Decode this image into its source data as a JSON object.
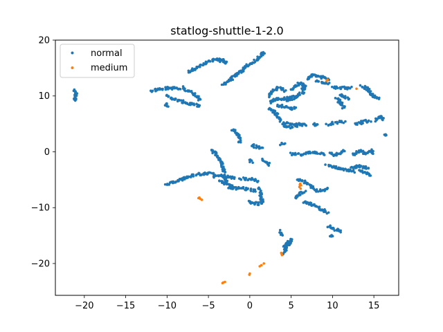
{
  "chart_data": {
    "type": "scatter",
    "title": "statlog-shuttle-1-2.0",
    "xlabel": "",
    "ylabel": "",
    "xlim": [
      -23.5,
      18.0
    ],
    "ylim": [
      -25.7,
      20.0
    ],
    "xticks": [
      -20,
      -15,
      -10,
      -5,
      0,
      5,
      10,
      15
    ],
    "yticks": [
      -20,
      -10,
      0,
      10,
      20
    ],
    "x_tick_labels": [
      "−20",
      "−15",
      "−10",
      "−5",
      "0",
      "5",
      "10",
      "15"
    ],
    "y_tick_labels": [
      "−20",
      "−10",
      "0",
      "10",
      "20"
    ],
    "legend_position": "upper-left",
    "series": [
      {
        "name": "normal",
        "color": "#1f77b4",
        "segments": [
          [
            [
              -21.3,
              11.0
            ],
            [
              -21.0,
              10.4
            ],
            [
              -21.2,
              9.2
            ]
          ],
          [
            [
              -7.5,
              14.3
            ],
            [
              -6.5,
              15.0
            ],
            [
              -5.5,
              15.7
            ],
            [
              -4.5,
              16.4
            ],
            [
              -3.5,
              16.6
            ],
            [
              -2.8,
              16.0
            ],
            [
              -3.8,
              16.3
            ]
          ],
          [
            [
              -3.3,
              12.0
            ],
            [
              -2.5,
              12.8
            ],
            [
              -1.6,
              13.8
            ],
            [
              -0.9,
              14.5
            ],
            [
              -0.5,
              15.2
            ]
          ],
          [
            [
              -0.8,
              15.0
            ],
            [
              0.0,
              15.6
            ],
            [
              0.8,
              16.4
            ],
            [
              1.3,
              17.3
            ],
            [
              1.8,
              17.8
            ]
          ],
          [
            [
              -12.0,
              10.9
            ],
            [
              -11.0,
              11.2
            ],
            [
              -10.0,
              11.4
            ],
            [
              -9.0,
              11.4
            ],
            [
              -8.5,
              11.2
            ]
          ],
          [
            [
              -8.2,
              11.5
            ],
            [
              -7.5,
              11.0
            ],
            [
              -6.8,
              10.4
            ],
            [
              -6.2,
              9.8
            ],
            [
              -6.0,
              9.2
            ]
          ],
          [
            [
              -10.0,
              10.0
            ],
            [
              -9.0,
              9.3
            ],
            [
              -8.0,
              8.9
            ],
            [
              -7.0,
              8.5
            ],
            [
              -6.1,
              8.2
            ]
          ],
          [
            [
              -10.2,
              8.6
            ],
            [
              -10.0,
              8.0
            ]
          ],
          [
            [
              -2.2,
              4.0
            ],
            [
              -1.6,
              3.4
            ],
            [
              -1.3,
              2.6
            ],
            [
              -1.2,
              1.8
            ]
          ],
          [
            [
              -4.7,
              0.4
            ],
            [
              -4.1,
              -0.4
            ],
            [
              -3.6,
              -1.3
            ],
            [
              -3.3,
              -2.3
            ],
            [
              -3.1,
              -3.4
            ],
            [
              -3.0,
              -4.5
            ],
            [
              -2.8,
              -5.4
            ]
          ],
          [
            [
              -10.2,
              -5.9
            ],
            [
              -9.2,
              -5.4
            ],
            [
              -8.2,
              -4.9
            ],
            [
              -7.2,
              -4.4
            ],
            [
              -6.2,
              -4.0
            ],
            [
              -5.2,
              -3.9
            ],
            [
              -4.4,
              -3.9
            ]
          ],
          [
            [
              -4.4,
              -4.4
            ],
            [
              -3.4,
              -4.3
            ],
            [
              -2.6,
              -4.5
            ],
            [
              -1.8,
              -4.7
            ]
          ],
          [
            [
              -3.7,
              -5.2
            ],
            [
              -3.0,
              -5.6
            ],
            [
              -2.4,
              -6.0
            ],
            [
              -1.9,
              -6.3
            ]
          ],
          [
            [
              -1.1,
              -4.8
            ],
            [
              0.0,
              -4.9
            ],
            [
              0.7,
              -5.0
            ],
            [
              0.9,
              -5.4
            ]
          ],
          [
            [
              -2.6,
              -6.3
            ],
            [
              -2.0,
              -6.6
            ],
            [
              -1.2,
              -6.4
            ],
            [
              -0.2,
              -6.7
            ],
            [
              0.8,
              -7.0
            ]
          ],
          [
            [
              1.1,
              -6.4
            ],
            [
              1.3,
              -7.2
            ],
            [
              1.3,
              -8.3
            ],
            [
              1.6,
              -9.0
            ],
            [
              1.0,
              -9.3
            ],
            [
              0.3,
              -9.1
            ],
            [
              0.0,
              -8.8
            ]
          ],
          [
            [
              0.2,
              1.2
            ],
            [
              0.8,
              0.9
            ],
            [
              1.4,
              0.6
            ]
          ],
          [
            [
              1.5,
              -1.4
            ],
            [
              2.0,
              -1.8
            ],
            [
              2.4,
              -2.3
            ]
          ],
          [
            [
              0.0,
              -1.4
            ],
            [
              0.2,
              -1.8
            ]
          ],
          [
            [
              3.7,
              -14.2
            ],
            [
              3.8,
              -14.9
            ]
          ],
          [
            [
              4.0,
              -16.8
            ],
            [
              4.5,
              -16.3
            ],
            [
              5.0,
              -15.8
            ],
            [
              4.4,
              -17.2
            ],
            [
              4.0,
              -18.3
            ]
          ],
          [
            [
              2.3,
              9.9
            ],
            [
              2.7,
              10.8
            ],
            [
              3.3,
              11.5
            ],
            [
              3.8,
              11.4
            ],
            [
              4.3,
              11.0
            ]
          ],
          [
            [
              2.4,
              8.8
            ],
            [
              3.0,
              9.3
            ],
            [
              3.6,
              9.5
            ],
            [
              4.6,
              9.6
            ],
            [
              5.2,
              9.8
            ]
          ],
          [
            [
              2.3,
              7.8
            ],
            [
              2.8,
              7.3
            ],
            [
              3.2,
              6.7
            ],
            [
              3.5,
              6.1
            ],
            [
              3.8,
              5.5
            ]
          ],
          [
            [
              3.4,
              8.4
            ],
            [
              4.3,
              8.0
            ],
            [
              5.0,
              7.7
            ],
            [
              5.5,
              7.9
            ]
          ],
          [
            [
              4.4,
              9.2
            ],
            [
              5.4,
              9.7
            ],
            [
              6.0,
              10.1
            ]
          ],
          [
            [
              3.9,
              5.2
            ],
            [
              5.0,
              5.0
            ],
            [
              6.0,
              4.9
            ],
            [
              6.8,
              4.8
            ]
          ],
          [
            [
              4.1,
              4.4
            ],
            [
              5.6,
              4.5
            ]
          ],
          [
            [
              5.0,
              11.1
            ],
            [
              5.6,
              11.7
            ],
            [
              6.2,
              12.5
            ]
          ],
          [
            [
              6.4,
              12.2
            ],
            [
              6.7,
              11.6
            ],
            [
              6.3,
              11.1
            ]
          ],
          [
            [
              7.0,
              13.0
            ],
            [
              7.6,
              13.7
            ],
            [
              8.2,
              13.6
            ],
            [
              9.0,
              13.2
            ],
            [
              9.5,
              13.0
            ]
          ],
          [
            [
              8.0,
              12.6
            ],
            [
              8.8,
              12.5
            ],
            [
              9.6,
              12.3
            ]
          ],
          [
            [
              6.1,
              10.7
            ],
            [
              6.6,
              10.6
            ]
          ],
          [
            [
              10.0,
              11.5
            ],
            [
              10.8,
              11.5
            ],
            [
              11.6,
              11.4
            ],
            [
              12.3,
              11.4
            ]
          ],
          [
            [
              11.0,
              10.3
            ],
            [
              11.5,
              9.7
            ],
            [
              12.0,
              9.3
            ]
          ],
          [
            [
              10.5,
              9.6
            ],
            [
              11.1,
              8.6
            ],
            [
              11.4,
              7.9
            ]
          ],
          [
            [
              13.5,
              11.8
            ],
            [
              14.2,
              11.3
            ],
            [
              14.5,
              10.6
            ],
            [
              15.0,
              9.8
            ],
            [
              15.6,
              9.5
            ]
          ],
          [
            [
              14.6,
              10.3
            ],
            [
              15.3,
              9.8
            ]
          ],
          [
            [
              7.6,
              4.8
            ],
            [
              8.2,
              5.1
            ]
          ],
          [
            [
              9.3,
              4.9
            ],
            [
              10.0,
              5.1
            ],
            [
              10.8,
              5.3
            ],
            [
              11.4,
              5.4
            ]
          ],
          [
            [
              12.8,
              4.9
            ],
            [
              13.5,
              5.3
            ],
            [
              14.0,
              5.5
            ],
            [
              14.5,
              5.4
            ]
          ],
          [
            [
              15.1,
              5.6
            ],
            [
              15.5,
              6.1
            ],
            [
              16.0,
              6.2
            ],
            [
              16.2,
              5.7
            ]
          ],
          [
            [
              16.4,
              3.0
            ]
          ],
          [
            [
              5.0,
              -0.4
            ],
            [
              6.0,
              -0.5
            ],
            [
              7.0,
              -0.2
            ],
            [
              8.0,
              -0.1
            ],
            [
              9.0,
              -0.4
            ]
          ],
          [
            [
              9.8,
              0.0
            ],
            [
              10.2,
              -0.7
            ],
            [
              10.9,
              -0.2
            ],
            [
              11.5,
              0.3
            ]
          ],
          [
            [
              12.4,
              -0.6
            ],
            [
              13.3,
              0.1
            ],
            [
              14.0,
              -0.4
            ],
            [
              14.6,
              0.2
            ],
            [
              15.0,
              -0.5
            ]
          ],
          [
            [
              9.3,
              -2.4
            ],
            [
              10.1,
              -2.7
            ],
            [
              11.0,
              -3.0
            ],
            [
              11.8,
              -3.3
            ],
            [
              12.6,
              -3.5
            ]
          ],
          [
            [
              12.3,
              -2.9
            ],
            [
              13.1,
              -2.6
            ],
            [
              14.0,
              -2.8
            ],
            [
              14.3,
              -3.1
            ]
          ],
          [
            [
              13.3,
              -3.5
            ],
            [
              14.0,
              -3.8
            ],
            [
              14.5,
              -4.1
            ]
          ],
          [
            [
              3.7,
              1.4
            ],
            [
              4.2,
              1.3
            ]
          ],
          [
            [
              5.7,
              -5.0
            ],
            [
              6.4,
              -5.2
            ],
            [
              7.0,
              -5.6
            ],
            [
              7.6,
              -6.3
            ],
            [
              8.0,
              -6.9
            ],
            [
              9.0,
              -7.0
            ],
            [
              9.4,
              -6.5
            ]
          ],
          [
            [
              5.6,
              -8.4
            ],
            [
              6.0,
              -7.6
            ],
            [
              6.6,
              -7.0
            ]
          ],
          [
            [
              6.5,
              -8.9
            ],
            [
              7.3,
              -9.3
            ],
            [
              8.0,
              -9.8
            ],
            [
              8.9,
              -10.5
            ],
            [
              9.4,
              -11.0
            ]
          ],
          [
            [
              9.5,
              -13.3
            ],
            [
              10.0,
              -13.8
            ],
            [
              10.7,
              -14.0
            ],
            [
              11.1,
              -14.2
            ]
          ],
          [
            [
              9.7,
              -14.8
            ],
            [
              10.0,
              -15.0
            ]
          ]
        ]
      },
      {
        "name": "medium",
        "color": "#ff7f0e",
        "points": [
          [
            -6.1,
            -8.2
          ],
          [
            -6.0,
            -8.4
          ],
          [
            -5.8,
            -8.6
          ],
          [
            -6.2,
            -8.3
          ],
          [
            3.8,
            -18.1
          ],
          [
            3.9,
            -18.5
          ],
          [
            3.85,
            -18.3
          ],
          [
            1.7,
            -20.0
          ],
          [
            1.4,
            -20.3
          ],
          [
            1.2,
            -20.5
          ],
          [
            0.0,
            -21.8
          ],
          [
            -0.05,
            -22.0
          ],
          [
            -3.0,
            -23.3
          ],
          [
            -3.2,
            -23.4
          ],
          [
            -3.3,
            -23.5
          ],
          [
            6.1,
            -5.7
          ],
          [
            6.2,
            -6.0
          ],
          [
            6.0,
            -6.3
          ],
          [
            6.15,
            -6.6
          ],
          [
            6.05,
            -5.9
          ],
          [
            9.4,
            12.9
          ],
          [
            9.3,
            12.7
          ],
          [
            12.9,
            11.3
          ]
        ]
      }
    ]
  }
}
